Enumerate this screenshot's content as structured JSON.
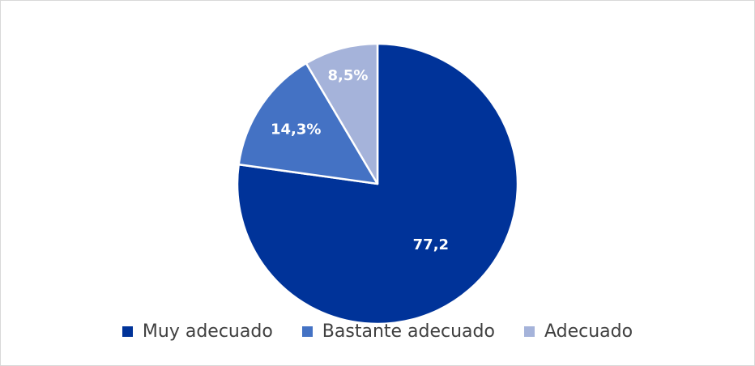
{
  "chart_data": {
    "type": "pie",
    "title": "",
    "categories": [
      "Muy adecuado",
      "Bastante adecuado",
      "Adecuado"
    ],
    "values": [
      77.2,
      14.3,
      8.5
    ],
    "value_labels": [
      "77,2",
      "14,3%",
      "8,5%"
    ],
    "colors": [
      "#003399",
      "#4472C4",
      "#A5B3DA"
    ],
    "start_angle_deg": 0,
    "direction": "clockwise",
    "legend_position": "bottom"
  }
}
